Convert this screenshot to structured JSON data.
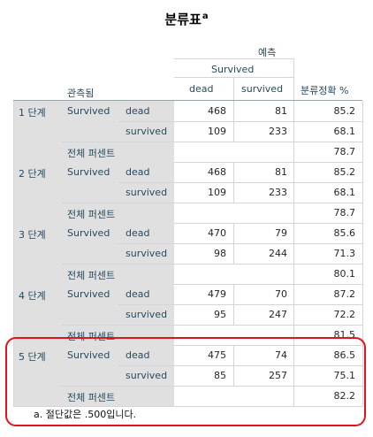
{
  "title": "분류표",
  "title_sup": "a",
  "header": {
    "predicted": "예측",
    "survived_group": "Survived",
    "observed": "관측됨",
    "col_dead": "dead",
    "col_survived": "survived",
    "col_accuracy": "분류정확 %"
  },
  "steps": [
    {
      "step": "1 단계",
      "var": "Survived",
      "rows": [
        {
          "label": "dead",
          "dead": "468",
          "survived": "81",
          "pct": "85.2"
        },
        {
          "label": "survived",
          "dead": "109",
          "survived": "233",
          "pct": "68.1"
        }
      ],
      "overall_label": "전체 퍼센트",
      "overall": "78.7"
    },
    {
      "step": "2 단계",
      "var": "Survived",
      "rows": [
        {
          "label": "dead",
          "dead": "468",
          "survived": "81",
          "pct": "85.2"
        },
        {
          "label": "survived",
          "dead": "109",
          "survived": "233",
          "pct": "68.1"
        }
      ],
      "overall_label": "전체 퍼센트",
      "overall": "78.7"
    },
    {
      "step": "3 단계",
      "var": "Survived",
      "rows": [
        {
          "label": "dead",
          "dead": "470",
          "survived": "79",
          "pct": "85.6"
        },
        {
          "label": "survived",
          "dead": "98",
          "survived": "244",
          "pct": "71.3"
        }
      ],
      "overall_label": "전체 퍼센트",
      "overall": "80.1"
    },
    {
      "step": "4 단계",
      "var": "Survived",
      "rows": [
        {
          "label": "dead",
          "dead": "479",
          "survived": "70",
          "pct": "87.2"
        },
        {
          "label": "survived",
          "dead": "95",
          "survived": "247",
          "pct": "72.2"
        }
      ],
      "overall_label": "전체 퍼센트",
      "overall": "81.5"
    },
    {
      "step": "5 단계",
      "var": "Survived",
      "rows": [
        {
          "label": "dead",
          "dead": "475",
          "survived": "74",
          "pct": "86.5"
        },
        {
          "label": "survived",
          "dead": "85",
          "survived": "257",
          "pct": "75.1"
        }
      ],
      "overall_label": "전체 퍼센트",
      "overall": "82.2"
    }
  ],
  "footnote": "a. 절단값은 .500입니다.",
  "highlight_color": "#e0141b"
}
